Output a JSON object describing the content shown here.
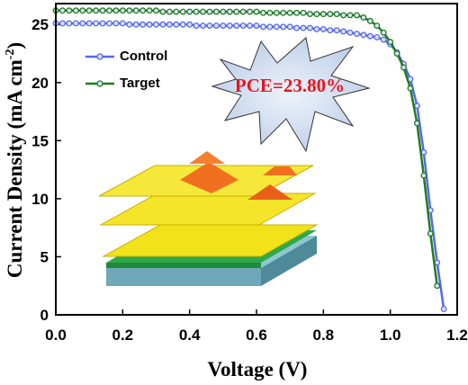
{
  "chart_data": {
    "type": "line",
    "x_label": "Voltage (V)",
    "y_label": {
      "text": "Current Density (mA cm",
      "sup": "-2",
      "end": ")"
    },
    "annotation": "PCE=23.80%",
    "x": [
      0,
      0.02,
      0.04,
      0.06,
      0.08,
      0.1,
      0.12,
      0.14,
      0.16,
      0.18,
      0.2,
      0.22,
      0.24,
      0.26,
      0.28,
      0.3,
      0.32,
      0.34,
      0.36,
      0.38,
      0.4,
      0.42,
      0.44,
      0.46,
      0.48,
      0.5,
      0.52,
      0.54,
      0.56,
      0.58,
      0.6,
      0.62,
      0.64,
      0.66,
      0.68,
      0.7,
      0.72,
      0.74,
      0.76,
      0.78,
      0.8,
      0.82,
      0.84,
      0.86,
      0.88,
      0.9,
      0.92,
      0.94,
      0.96,
      0.98,
      1.0,
      1.02,
      1.04,
      1.06,
      1.08,
      1.1,
      1.12,
      1.14,
      1.16
    ],
    "series": [
      {
        "name": "Control",
        "color": "#5468f0",
        "values": [
          25.1,
          25.1,
          25.1,
          25.1,
          25.1,
          25.1,
          25.1,
          25.1,
          25.1,
          25.1,
          25.1,
          25.0,
          25.0,
          25.0,
          25.0,
          25.0,
          25.0,
          25.0,
          25.0,
          25.0,
          25.0,
          24.9,
          24.9,
          24.9,
          24.9,
          24.9,
          24.9,
          24.9,
          24.9,
          24.9,
          24.9,
          24.8,
          24.8,
          24.8,
          24.8,
          24.8,
          24.7,
          24.7,
          24.7,
          24.6,
          24.6,
          24.5,
          24.5,
          24.4,
          24.3,
          24.2,
          24.1,
          24.0,
          23.9,
          23.7,
          23.3,
          22.6,
          21.6,
          20.3,
          18.0,
          14.0,
          9.0,
          4.5,
          0.5
        ]
      },
      {
        "name": "Target",
        "color": "#1e7d1e",
        "values": [
          26.2,
          26.2,
          26.2,
          26.2,
          26.2,
          26.2,
          26.2,
          26.2,
          26.2,
          26.2,
          26.2,
          26.2,
          26.2,
          26.2,
          26.2,
          26.2,
          26.1,
          26.1,
          26.1,
          26.1,
          26.1,
          26.1,
          26.1,
          26.1,
          26.1,
          26.1,
          26.1,
          26.1,
          26.1,
          26.1,
          26.1,
          26.0,
          26.0,
          26.0,
          26.0,
          26.0,
          26.0,
          26.0,
          25.9,
          25.9,
          25.9,
          25.9,
          25.9,
          25.8,
          25.8,
          25.8,
          25.6,
          25.3,
          24.9,
          24.3,
          23.5,
          22.5,
          21.3,
          19.5,
          16.5,
          12.0,
          7.0,
          2.5,
          null
        ]
      }
    ],
    "xlim": [
      0,
      1.2
    ],
    "ylim": [
      0,
      26.8
    ],
    "xticks": [
      {
        "value": 0,
        "label": "0.0"
      },
      0.2,
      0.4,
      0.6,
      0.8,
      {
        "value": 1,
        "label": "1.0"
      },
      1.2
    ],
    "yticks": [
      0,
      5,
      10,
      15,
      20,
      25
    ]
  }
}
